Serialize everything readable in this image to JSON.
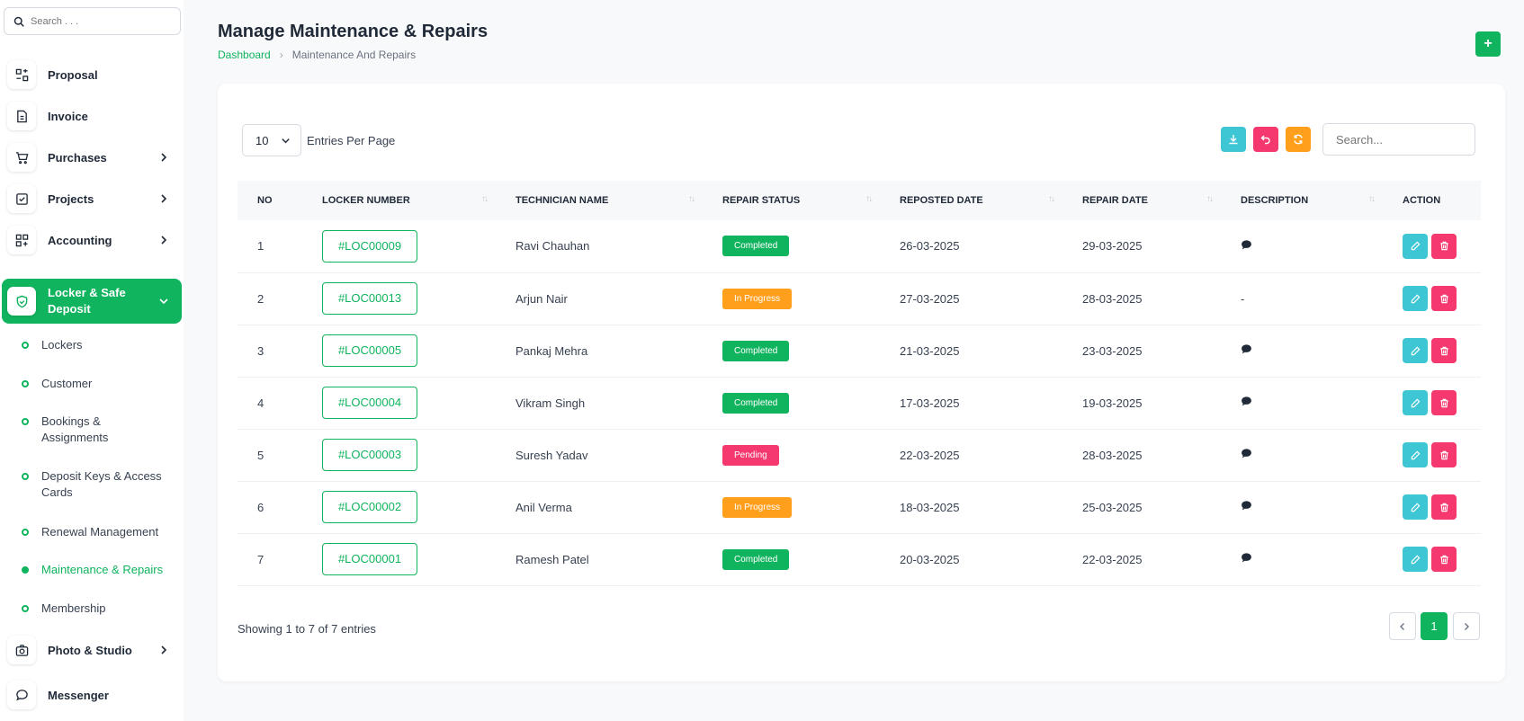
{
  "sidebar": {
    "search_placeholder": "Search . . .",
    "items": [
      {
        "label": "Proposal",
        "icon": "proposal-icon"
      },
      {
        "label": "Invoice",
        "icon": "invoice-icon"
      },
      {
        "label": "Purchases",
        "icon": "cart-icon"
      },
      {
        "label": "Projects",
        "icon": "projects-icon"
      },
      {
        "label": "Accounting",
        "icon": "accounting-icon"
      },
      {
        "label": "Locker & Safe Deposit",
        "icon": "shield-icon"
      },
      {
        "label": "Photo & Studio",
        "icon": "camera-icon"
      },
      {
        "label": "Messenger",
        "icon": "chat-icon"
      }
    ],
    "sub_items": [
      "Lockers",
      "Customer",
      "Bookings & Assignments",
      "Deposit Keys & Access Cards",
      "Renewal Management",
      "Maintenance & Repairs",
      "Membership"
    ]
  },
  "header": {
    "title": "Manage Maintenance & Repairs",
    "breadcrumb_home": "Dashboard",
    "breadcrumb_current": "Maintenance And Repairs",
    "add_label": "+"
  },
  "table_controls": {
    "entries_value": "10",
    "entries_label": "Entries Per Page",
    "search_placeholder": "Search..."
  },
  "table": {
    "columns": [
      "NO",
      "LOCKER NUMBER",
      "TECHNICIAN NAME",
      "REPAIR STATUS",
      "REPOSTED DATE",
      "REPAIR DATE",
      "DESCRIPTION",
      "ACTION"
    ],
    "rows": [
      {
        "no": "1",
        "locker": "#LOC00009",
        "tech": "Ravi Chauhan",
        "status": "Completed",
        "reposted": "26-03-2025",
        "repair": "29-03-2025",
        "desc": "icon"
      },
      {
        "no": "2",
        "locker": "#LOC00013",
        "tech": "Arjun Nair",
        "status": "In Progress",
        "reposted": "27-03-2025",
        "repair": "28-03-2025",
        "desc": "-"
      },
      {
        "no": "3",
        "locker": "#LOC00005",
        "tech": "Pankaj Mehra",
        "status": "Completed",
        "reposted": "21-03-2025",
        "repair": "23-03-2025",
        "desc": "icon"
      },
      {
        "no": "4",
        "locker": "#LOC00004",
        "tech": "Vikram Singh",
        "status": "Completed",
        "reposted": "17-03-2025",
        "repair": "19-03-2025",
        "desc": "icon"
      },
      {
        "no": "5",
        "locker": "#LOC00003",
        "tech": "Suresh Yadav",
        "status": "Pending",
        "reposted": "22-03-2025",
        "repair": "28-03-2025",
        "desc": "icon"
      },
      {
        "no": "6",
        "locker": "#LOC00002",
        "tech": "Anil Verma",
        "status": "In Progress",
        "reposted": "18-03-2025",
        "repair": "25-03-2025",
        "desc": "icon"
      },
      {
        "no": "7",
        "locker": "#LOC00001",
        "tech": "Ramesh Patel",
        "status": "Completed",
        "reposted": "20-03-2025",
        "repair": "22-03-2025",
        "desc": "icon"
      }
    ]
  },
  "footer": {
    "showing": "Showing 1 to 7 of 7 entries",
    "current_page": "1"
  },
  "colors": {
    "primary": "#10b35e",
    "info": "#3ec6d4",
    "danger": "#f5386e",
    "warning": "#ff9f1c"
  }
}
